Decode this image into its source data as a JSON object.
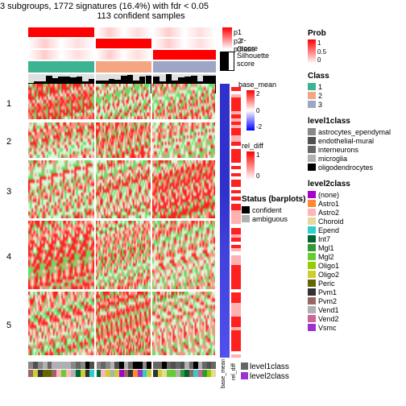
{
  "title": {
    "line1": "3 subgroups, 1772 signatures (16.4%) with fdr < 0.05",
    "line2": "113 confident samples"
  },
  "annotation_top": {
    "rows": [
      "p1",
      "p2",
      "p3"
    ],
    "class_label": "Class",
    "silhouette_label": "Silhouette\nscore",
    "zscore_label": "z-score",
    "zscore_ticks": [
      "2",
      "0",
      "-2"
    ]
  },
  "groups": {
    "proportions": [
      0.36,
      0.3,
      0.34
    ],
    "class_colors": [
      "#3cb494",
      "#f4a582",
      "#9da6c4"
    ],
    "row_labels": [
      "1",
      "2",
      "3",
      "4",
      "5"
    ],
    "row_heights": [
      0.14,
      0.14,
      0.22,
      0.26,
      0.24
    ]
  },
  "side_columns": {
    "base_mean": {
      "title": "base_mean",
      "ticks": [
        "2",
        "0",
        "-2"
      ],
      "gradient": [
        "#ff0000",
        "#ffffff",
        "#0000ff"
      ]
    },
    "rel_diff": {
      "title": "rel_diff",
      "ticks": [
        "1",
        "",
        "0"
      ],
      "gradient": [
        "#ff0000",
        "#ffffff"
      ]
    }
  },
  "bottom": {
    "level1_label": "level1class",
    "level2_label": "level2class",
    "base_mean_label": "base_mean",
    "rel_diff_label": "rel_diff"
  },
  "legends": {
    "prob": {
      "title": "Prob",
      "ticks": [
        "1",
        "0.5",
        "0"
      ],
      "gradient": [
        "#ff0000",
        "#ffffff"
      ]
    },
    "class": {
      "title": "Class",
      "items": [
        {
          "label": "1",
          "color": "#3cb494"
        },
        {
          "label": "2",
          "color": "#f4a582"
        },
        {
          "label": "3",
          "color": "#9da6c4"
        }
      ]
    },
    "level1": {
      "title": "level1class",
      "items": [
        {
          "label": "astrocytes_ependymal",
          "color": "#888888"
        },
        {
          "label": "endothelial-mural",
          "color": "#505050"
        },
        {
          "label": "interneurons",
          "color": "#666666"
        },
        {
          "label": "microglia",
          "color": "#b0b0b0"
        },
        {
          "label": "oligodendrocytes",
          "color": "#000000"
        }
      ]
    },
    "level2": {
      "title": "level2class",
      "items": [
        {
          "label": "(none)",
          "color": "#aa00cc"
        },
        {
          "label": "Astro1",
          "color": "#ff8833"
        },
        {
          "label": "Astro2",
          "color": "#ffb3ba"
        },
        {
          "label": "Choroid",
          "color": "#e8d89a"
        },
        {
          "label": "Epend",
          "color": "#33cccc"
        },
        {
          "label": "Int7",
          "color": "#006633"
        },
        {
          "label": "Mgl1",
          "color": "#339933"
        },
        {
          "label": "Mgl2",
          "color": "#66cc33"
        },
        {
          "label": "Oligo1",
          "color": "#99cc00"
        },
        {
          "label": "Oligo2",
          "color": "#cccc33"
        },
        {
          "label": "Peric",
          "color": "#666600"
        },
        {
          "label": "Pvm1",
          "color": "#333333"
        },
        {
          "label": "Pvm2",
          "color": "#996666"
        },
        {
          "label": "Vend1",
          "color": "#b0b0b0"
        },
        {
          "label": "Vend2",
          "color": "#cc6699"
        },
        {
          "label": "Vsmc",
          "color": "#9933cc"
        }
      ]
    },
    "status": {
      "title": "Status (barplots)",
      "items": [
        {
          "label": "confident",
          "color": "#000000"
        },
        {
          "label": "ambiguous",
          "color": "#b0b0b0"
        }
      ]
    }
  },
  "colors": {
    "heatmap_high": "#ff2020",
    "heatmap_mid": "#ffffff",
    "heatmap_lowg": "#90ee90",
    "sil_bg": "#e0e0e0",
    "sil_bar": "#000000"
  }
}
